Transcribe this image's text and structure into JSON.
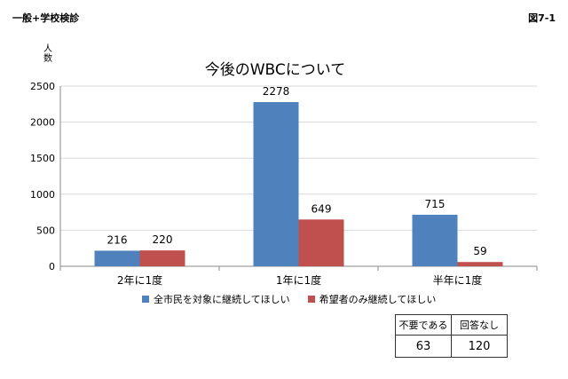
{
  "header": {
    "left": "一般+学校検診",
    "right": "図7-1"
  },
  "colors": {
    "series1": "#4f81bd",
    "series2": "#c0504d",
    "axis": "#888888",
    "grid": "#d9d9d9"
  },
  "chart_data": {
    "type": "bar",
    "title": "今後のWBCについて",
    "ylabel": "人数",
    "categories": [
      "2年に1度",
      "1年に1度",
      "半年に1度"
    ],
    "series": [
      {
        "name": "全市民を対象に継続してほしい",
        "values": [
          216,
          2278,
          715
        ]
      },
      {
        "name": "希望者のみ継続してほしい",
        "values": [
          220,
          649,
          59
        ]
      }
    ],
    "ylim": [
      0,
      2500
    ],
    "yticks": [
      0,
      500,
      1000,
      1500,
      2000,
      2500
    ],
    "grid": true,
    "legend": "bottom"
  },
  "stats_table": {
    "headers": [
      "不要である",
      "回答なし"
    ],
    "values": [
      "63",
      "120"
    ]
  }
}
